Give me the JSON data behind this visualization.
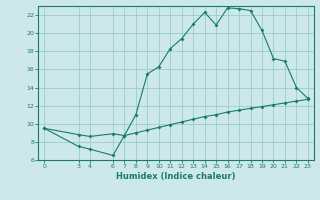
{
  "xlabel": "Humidex (Indice chaleur)",
  "ylabel": "",
  "bg_color": "#cce8e8",
  "line_color": "#1a7a6e",
  "xlim": [
    -0.5,
    23.5
  ],
  "ylim": [
    6,
    23
  ],
  "yticks": [
    6,
    8,
    10,
    12,
    14,
    16,
    18,
    20,
    22
  ],
  "xticks": [
    0,
    3,
    4,
    6,
    7,
    8,
    9,
    10,
    11,
    12,
    13,
    14,
    15,
    16,
    17,
    18,
    19,
    20,
    21,
    22,
    23
  ],
  "series1_x": [
    0,
    3,
    4,
    6,
    7,
    8,
    9,
    10,
    11,
    12,
    13,
    14,
    15,
    16,
    17,
    18,
    19,
    20,
    21,
    22,
    23
  ],
  "series1_y": [
    9.5,
    7.5,
    7.2,
    6.5,
    8.7,
    11.0,
    15.5,
    16.3,
    18.3,
    19.4,
    21.0,
    22.3,
    20.9,
    22.8,
    22.7,
    22.5,
    20.3,
    17.2,
    16.9,
    14.0,
    12.8
  ],
  "series2_x": [
    0,
    3,
    4,
    6,
    7,
    8,
    9,
    10,
    11,
    12,
    13,
    14,
    15,
    16,
    17,
    18,
    19,
    20,
    21,
    22,
    23
  ],
  "series2_y": [
    9.5,
    8.8,
    8.6,
    8.9,
    8.7,
    9.0,
    9.3,
    9.6,
    9.9,
    10.2,
    10.5,
    10.8,
    11.0,
    11.3,
    11.5,
    11.7,
    11.9,
    12.1,
    12.3,
    12.5,
    12.7
  ]
}
